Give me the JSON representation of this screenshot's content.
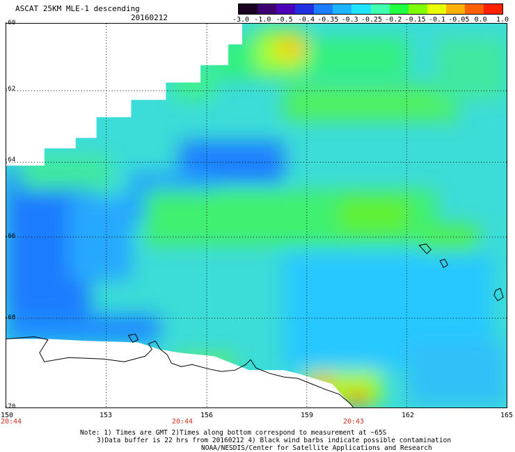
{
  "title": "ASCAT 25KM MLE-1 descending",
  "date": "20160212",
  "colorbar": {
    "labels": [
      "-3.0",
      "-1.0",
      "-0.5",
      "-0.4",
      "-0.35",
      "-0.3",
      "-0.25",
      "-0.2",
      "-0.15",
      "-0.1",
      "-0.05",
      "0.0",
      "1.0"
    ],
    "colors": [
      "#1a0020",
      "#3c0070",
      "#4c00b8",
      "#2030e0",
      "#1e7cff",
      "#1eb4ff",
      "#20e4ff",
      "#40ffb0",
      "#20ff40",
      "#80ff00",
      "#e8ff00",
      "#ffb000",
      "#ff6000",
      "#ff2000"
    ]
  },
  "map": {
    "lat_labels": [
      "-60",
      "-62",
      "-64",
      "-66",
      "-68",
      "-70"
    ],
    "lon_labels": [
      "150",
      "153",
      "156",
      "159",
      "162",
      "165"
    ],
    "time_labels": [
      "20:44",
      "20:44",
      "20:43"
    ]
  },
  "notes": [
    "Note: 1) Times are GMT 2)Times along bottom correspond to measurement at ~65S",
    "3)Data buffer is 22 hrs from 20160212 4) Black wind barbs indicate possible contamination",
    "NOAA/NESDIS/Center for Satellite Applications and Research"
  ]
}
